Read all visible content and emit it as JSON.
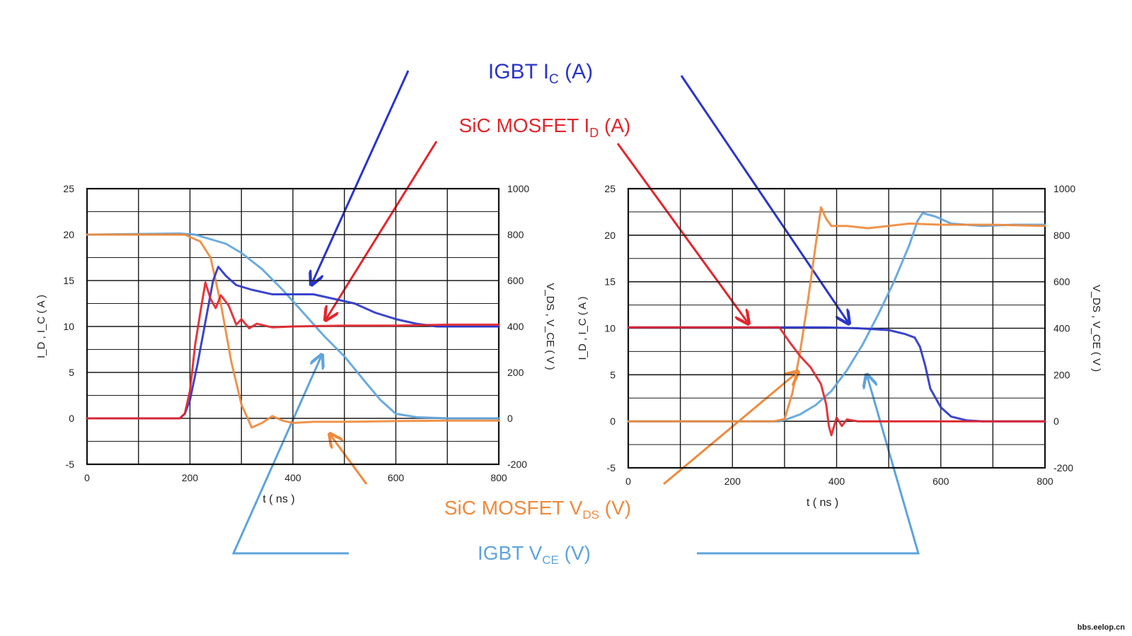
{
  "labels": {
    "igbt_ic": {
      "main": "IGBT  I",
      "sub": "C",
      "tail": " (A)",
      "color": "#2a35c9"
    },
    "sic_id": {
      "main": "SiC MOSFET  I",
      "sub": "D",
      "tail": " (A)",
      "color": "#e2262c"
    },
    "sic_vds": {
      "main": "SiC MOSFET V",
      "sub": "DS",
      "tail": " (V)",
      "color": "#ee8a3c"
    },
    "igbt_vce": {
      "main": "IGBT V",
      "sub": "CE",
      "tail": " (V)",
      "color": "#5ea4dc"
    }
  },
  "watermark": "bbs.eelop.cn",
  "chart_data": [
    {
      "type": "line",
      "title": "",
      "xlabel": "t ( ns )",
      "ylabel_left": "I_D , I_C ( A )",
      "ylabel_right": "V_DS , V_CE ( V )",
      "xlim": [
        0,
        800
      ],
      "ylim_left": [
        -5,
        25
      ],
      "ylim_right": [
        -200,
        1000
      ],
      "x_ticks": [
        "0",
        "200",
        "400",
        "600",
        "800"
      ],
      "y_left_ticks": [
        "-5",
        "0",
        "5",
        "10",
        "15",
        "20",
        "25"
      ],
      "y_right_ticks": [
        "-200",
        "0",
        "200",
        "400",
        "600",
        "800",
        "1000"
      ],
      "grid": true,
      "series": [
        {
          "name": "IGBT V_CE (V)",
          "axis": "right",
          "color": "#5ea4dc",
          "x": [
            0,
            180,
            210,
            240,
            270,
            300,
            340,
            380,
            420,
            460,
            500,
            540,
            570,
            600,
            640,
            700,
            800
          ],
          "y": [
            800,
            805,
            800,
            780,
            760,
            720,
            650,
            560,
            460,
            360,
            270,
            160,
            80,
            20,
            5,
            0,
            0
          ]
        },
        {
          "name": "SiC MOSFET V_DS (V)",
          "axis": "right",
          "color": "#ee8a3c",
          "x": [
            0,
            170,
            190,
            220,
            240,
            260,
            280,
            300,
            320,
            340,
            360,
            380,
            400,
            440,
            500,
            600,
            700,
            800
          ],
          "y": [
            800,
            800,
            800,
            770,
            700,
            500,
            250,
            60,
            -40,
            -20,
            10,
            -10,
            -20,
            -15,
            -15,
            -12,
            -10,
            -10
          ]
        },
        {
          "name": "IGBT I_C (A)",
          "axis": "left",
          "color": "#2a35c9",
          "x": [
            0,
            180,
            190,
            200,
            215,
            230,
            245,
            255,
            270,
            290,
            320,
            360,
            400,
            440,
            480,
            520,
            560,
            600,
            640,
            680,
            720,
            800
          ],
          "y": [
            0,
            0,
            0.5,
            2,
            6,
            10.5,
            15,
            16.5,
            15.5,
            14.5,
            14,
            13.5,
            13.5,
            13.5,
            13,
            12.5,
            11.5,
            10.8,
            10.3,
            10,
            10,
            10
          ]
        },
        {
          "name": "SiC MOSFET I_D (A)",
          "axis": "left",
          "color": "#e2262c",
          "x": [
            0,
            180,
            190,
            200,
            210,
            220,
            230,
            240,
            250,
            260,
            275,
            290,
            300,
            315,
            330,
            360,
            400,
            500,
            600,
            700,
            800
          ],
          "y": [
            0,
            0,
            0.5,
            3,
            8,
            11.5,
            14.8,
            13,
            12,
            13.4,
            12.3,
            10.2,
            10.8,
            9.8,
            10.3,
            9.9,
            10,
            10.1,
            10.1,
            10.2,
            10.2
          ]
        }
      ]
    },
    {
      "type": "line",
      "title": "",
      "xlabel": "t ( ns )",
      "ylabel_left": "I_D , I_C ( A )",
      "ylabel_right": "V_DS , V_CE ( V )",
      "xlim": [
        0,
        800
      ],
      "ylim_left": [
        -5,
        25
      ],
      "ylim_right": [
        -200,
        1000
      ],
      "x_ticks": [
        "0",
        "200",
        "400",
        "600",
        "800"
      ],
      "y_left_ticks": [
        "-5",
        "0",
        "5",
        "10",
        "15",
        "20",
        "25"
      ],
      "y_right_ticks": [
        "-200",
        "0",
        "200",
        "400",
        "600",
        "800",
        "1000"
      ],
      "grid": true,
      "series": [
        {
          "name": "IGBT V_CE (V)",
          "axis": "right",
          "color": "#5ea4dc",
          "x": [
            0,
            290,
            300,
            330,
            360,
            390,
            420,
            450,
            480,
            510,
            540,
            555,
            565,
            590,
            620,
            680,
            740,
            800
          ],
          "y": [
            0,
            0,
            5,
            30,
            70,
            130,
            220,
            330,
            460,
            600,
            760,
            860,
            895,
            880,
            850,
            840,
            845,
            845
          ]
        },
        {
          "name": "SiC MOSFET V_DS (V)",
          "axis": "right",
          "color": "#ee8a3c",
          "x": [
            0,
            280,
            300,
            315,
            330,
            345,
            360,
            370,
            380,
            390,
            420,
            460,
            500,
            540,
            600,
            700,
            800
          ],
          "y": [
            0,
            0,
            10,
            120,
            300,
            520,
            760,
            920,
            870,
            840,
            840,
            830,
            840,
            850,
            845,
            845,
            840
          ]
        },
        {
          "name": "IGBT I_C (A)",
          "axis": "left",
          "color": "#2a35c9",
          "x": [
            0,
            200,
            300,
            380,
            440,
            500,
            530,
            550,
            560,
            570,
            580,
            600,
            620,
            650,
            680,
            720,
            800
          ],
          "y": [
            10.1,
            10.1,
            10.1,
            10.1,
            10,
            9.8,
            9.4,
            9,
            8,
            6,
            3.5,
            1.5,
            0.5,
            0.1,
            0,
            0,
            0
          ]
        },
        {
          "name": "SiC MOSFET I_D (A)",
          "axis": "left",
          "color": "#e2262c",
          "x": [
            0,
            200,
            290,
            310,
            330,
            350,
            370,
            380,
            385,
            390,
            400,
            410,
            420,
            440,
            500,
            600,
            700,
            800
          ],
          "y": [
            10.1,
            10.1,
            10.1,
            8.5,
            7,
            5.8,
            4,
            1.8,
            -0.5,
            -1.5,
            0.4,
            -0.5,
            0.2,
            0,
            0,
            0,
            0,
            0
          ]
        }
      ]
    }
  ]
}
